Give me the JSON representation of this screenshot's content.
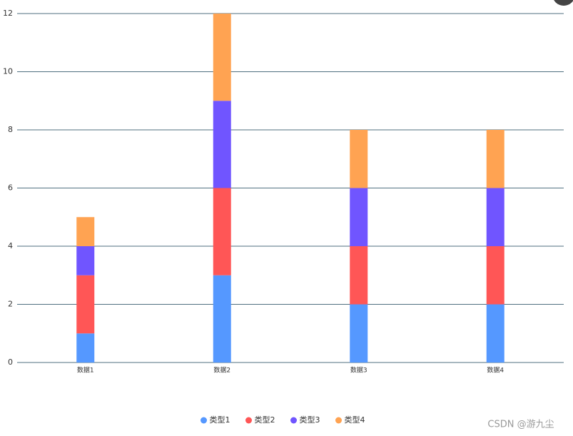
{
  "chart_data": {
    "type": "bar",
    "stacked": true,
    "categories": [
      "数据1",
      "数据2",
      "数据3",
      "数据4"
    ],
    "series": [
      {
        "name": "类型1",
        "color": "#5598ff",
        "values": [
          1,
          3,
          2,
          2
        ]
      },
      {
        "name": "类型2",
        "color": "#ff5656",
        "values": [
          2,
          3,
          2,
          2
        ]
      },
      {
        "name": "类型3",
        "color": "#7055ff",
        "values": [
          1,
          3,
          2,
          2
        ]
      },
      {
        "name": "类型4",
        "color": "#ffa352",
        "values": [
          1,
          3,
          2,
          2
        ]
      }
    ],
    "ylim": [
      0,
      12
    ],
    "yticks": [
      0,
      2,
      4,
      6,
      8,
      10,
      12
    ],
    "grid": true,
    "legend": "bottom"
  },
  "watermark": "CSDN @游九尘"
}
